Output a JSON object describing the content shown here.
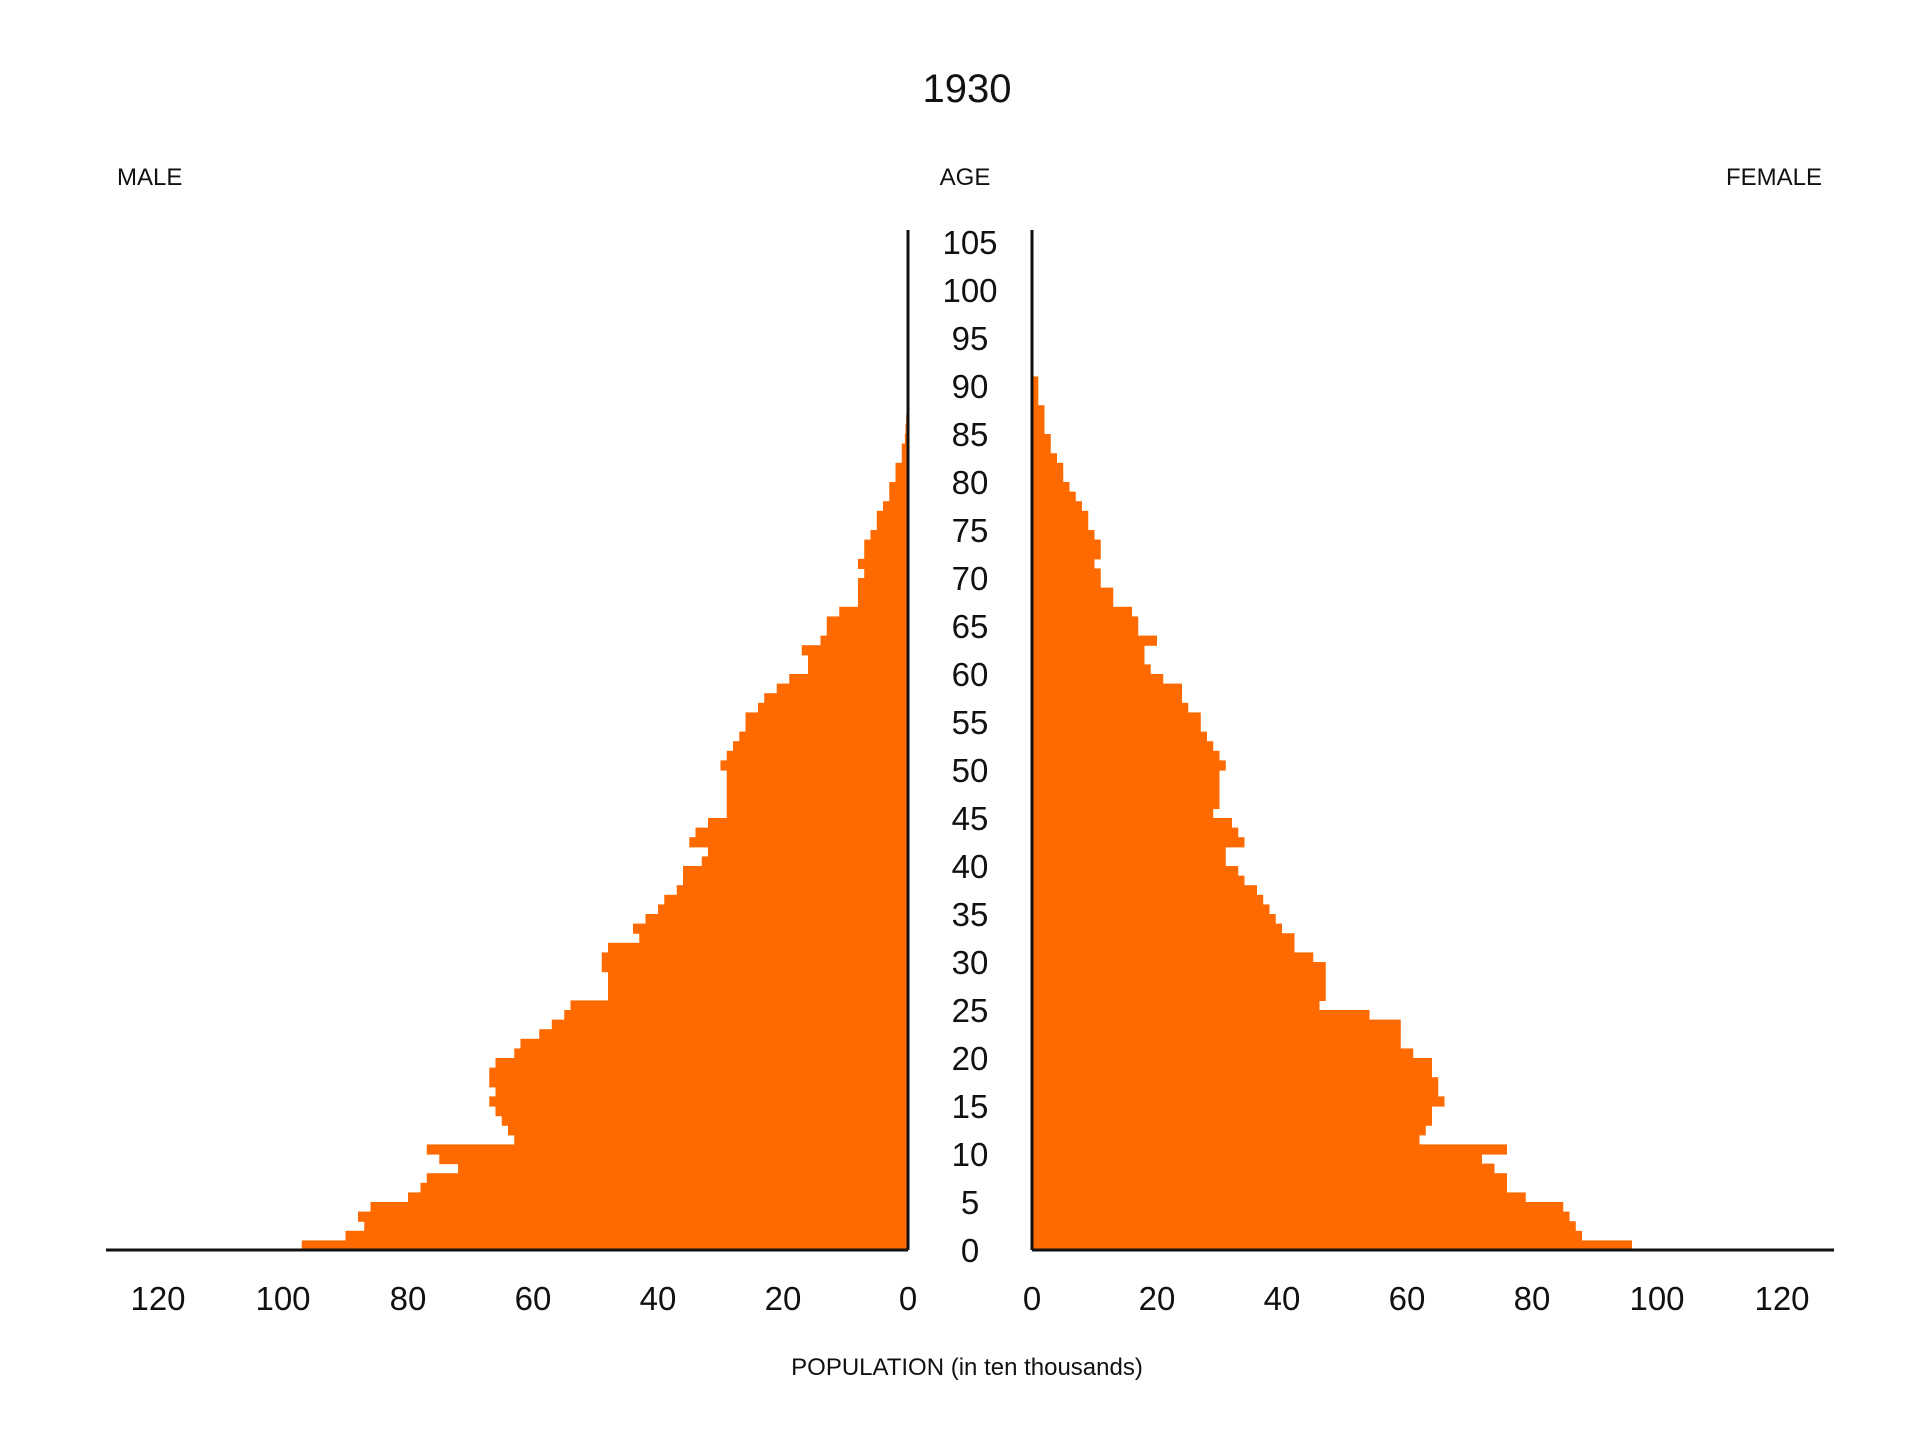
{
  "chart_data": {
    "type": "population_pyramid",
    "title": "1930",
    "left_label": "MALE",
    "center_label": "AGE",
    "right_label": "FEMALE",
    "xlabel": "POPULATION (in ten thousands)",
    "bar_color": "#ff6a00",
    "axis_color": "#111111",
    "xlim": [
      0,
      128
    ],
    "ylim": [
      0,
      105
    ],
    "x_ticks": [
      0,
      20,
      40,
      60,
      80,
      100,
      120
    ],
    "age_ticks": [
      0,
      5,
      10,
      15,
      20,
      25,
      30,
      35,
      40,
      45,
      50,
      55,
      60,
      65,
      70,
      75,
      80,
      85,
      90,
      95,
      100,
      105
    ],
    "ages": [
      0,
      1,
      2,
      3,
      4,
      5,
      6,
      7,
      8,
      9,
      10,
      11,
      12,
      13,
      14,
      15,
      16,
      17,
      18,
      19,
      20,
      21,
      22,
      23,
      24,
      25,
      26,
      27,
      28,
      29,
      30,
      31,
      32,
      33,
      34,
      35,
      36,
      37,
      38,
      39,
      40,
      41,
      42,
      43,
      44,
      45,
      46,
      47,
      48,
      49,
      50,
      51,
      52,
      53,
      54,
      55,
      56,
      57,
      58,
      59,
      60,
      61,
      62,
      63,
      64,
      65,
      66,
      67,
      68,
      69,
      70,
      71,
      72,
      73,
      74,
      75,
      76,
      77,
      78,
      79,
      80,
      81,
      82,
      83,
      84,
      85,
      86,
      87,
      88,
      89,
      90
    ],
    "series": [
      {
        "name": "MALE",
        "values": [
          97,
          90,
          87,
          88,
          86,
          80,
          78,
          77,
          72,
          75,
          77,
          63,
          64,
          65,
          66,
          67,
          66,
          67,
          67,
          66,
          63,
          62,
          59,
          57,
          55,
          54,
          48,
          48,
          48,
          49,
          49,
          48,
          43,
          44,
          42,
          40,
          39,
          37,
          36,
          36,
          33,
          32,
          35,
          34,
          32,
          29,
          29,
          29,
          29,
          29,
          30,
          29,
          28,
          27,
          26,
          26,
          24,
          23,
          21,
          19,
          16,
          16,
          17,
          14,
          13,
          13,
          11,
          8,
          8,
          8,
          7,
          8,
          7,
          7,
          6,
          5,
          5,
          4,
          3,
          3,
          2,
          2,
          1,
          1,
          0.5,
          0.4,
          0.3,
          0.2,
          0.1,
          0.1,
          0.1
        ]
      },
      {
        "name": "FEMALE",
        "values": [
          96,
          88,
          87,
          86,
          85,
          79,
          76,
          76,
          74,
          72,
          76,
          62,
          63,
          64,
          64,
          66,
          65,
          65,
          64,
          64,
          61,
          59,
          59,
          59,
          54,
          46,
          47,
          47,
          47,
          47,
          45,
          42,
          42,
          40,
          39,
          38,
          37,
          36,
          34,
          33,
          31,
          31,
          34,
          33,
          32,
          29,
          30,
          30,
          30,
          30,
          31,
          30,
          29,
          28,
          27,
          27,
          25,
          24,
          24,
          21,
          19,
          18,
          18,
          20,
          17,
          17,
          16,
          13,
          13,
          11,
          11,
          10,
          11,
          11,
          10,
          9,
          9,
          8,
          7,
          6,
          5,
          5,
          4,
          3,
          3,
          2,
          2,
          2,
          1,
          1,
          1
        ]
      }
    ]
  }
}
